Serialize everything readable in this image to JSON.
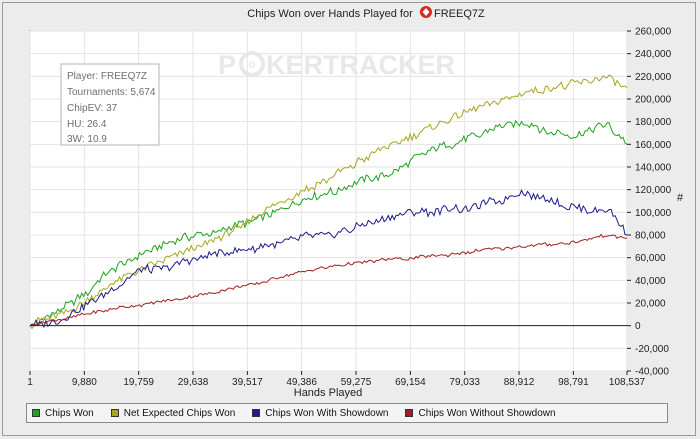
{
  "chart_data": {
    "type": "line",
    "title": "Chips Won over Hands Played for",
    "player_name": "FREEQ7Z",
    "player_icon": "pokerstars-icon",
    "watermark_left": "P",
    "watermark_o": "O",
    "watermark_right": "KERTRACKER",
    "xlabel": "Hands Played",
    "ylabel": "#",
    "xlim": [
      1,
      108537
    ],
    "ylim": [
      -40000,
      260000
    ],
    "x_ticks": [
      "1",
      "9,880",
      "19,759",
      "29,638",
      "39,517",
      "49,386",
      "59,275",
      "69,154",
      "79,033",
      "88,912",
      "98,791",
      "108,537"
    ],
    "x_tick_values": [
      1,
      9880,
      19759,
      29638,
      39517,
      49386,
      59275,
      69154,
      79033,
      88912,
      98791,
      108537
    ],
    "y_ticks": [
      "-40,000",
      "-20,000",
      "0",
      "20,000",
      "40,000",
      "60,000",
      "80,000",
      "100,000",
      "120,000",
      "140,000",
      "160,000",
      "180,000",
      "200,000",
      "220,000",
      "240,000",
      "260,000"
    ],
    "y_tick_values": [
      -40000,
      -20000,
      0,
      20000,
      40000,
      60000,
      80000,
      100000,
      120000,
      140000,
      160000,
      180000,
      200000,
      220000,
      240000,
      260000
    ],
    "info_box": [
      "Player: FREEQ7Z",
      "Tournaments: 5,674",
      "ChipEV: 37",
      "HU: 26.4",
      "3W: 10.9"
    ],
    "x": [
      1,
      5000,
      10000,
      15000,
      20000,
      25000,
      30000,
      35000,
      40000,
      45000,
      50000,
      55000,
      60000,
      65000,
      70000,
      75000,
      80000,
      85000,
      90000,
      95000,
      100000,
      105000,
      108537
    ],
    "series": [
      {
        "name": "Chips Won",
        "color": "#21a121",
        "values": [
          0,
          12000,
          28000,
          50000,
          62000,
          72000,
          80000,
          84000,
          92000,
          102000,
          112000,
          118000,
          128000,
          134000,
          148000,
          158000,
          165000,
          175000,
          180000,
          170000,
          168000,
          178000,
          160000
        ]
      },
      {
        "name": "Net Expected Chips Won",
        "color": "#a8a61c",
        "values": [
          0,
          10000,
          20000,
          38000,
          50000,
          58000,
          68000,
          78000,
          92000,
          108000,
          120000,
          132000,
          145000,
          158000,
          168000,
          178000,
          190000,
          198000,
          205000,
          210000,
          214000,
          220000,
          210000
        ]
      },
      {
        "name": "Chips Won With Showdown",
        "color": "#1c1c8a",
        "values": [
          0,
          4000,
          18000,
          32000,
          48000,
          52000,
          60000,
          64000,
          68000,
          72000,
          78000,
          80000,
          88000,
          94000,
          100000,
          102000,
          104000,
          110000,
          118000,
          110000,
          102000,
          104000,
          80000
        ]
      },
      {
        "name": "Chips Won Without Showdown",
        "color": "#a02020",
        "values": [
          0,
          5000,
          10000,
          15000,
          18000,
          22000,
          26000,
          31000,
          36000,
          42000,
          48000,
          52000,
          56000,
          58000,
          60000,
          62000,
          65000,
          68000,
          70000,
          72000,
          74000,
          80000,
          77000
        ]
      }
    ],
    "grid": true,
    "legend_position": "bottom"
  }
}
